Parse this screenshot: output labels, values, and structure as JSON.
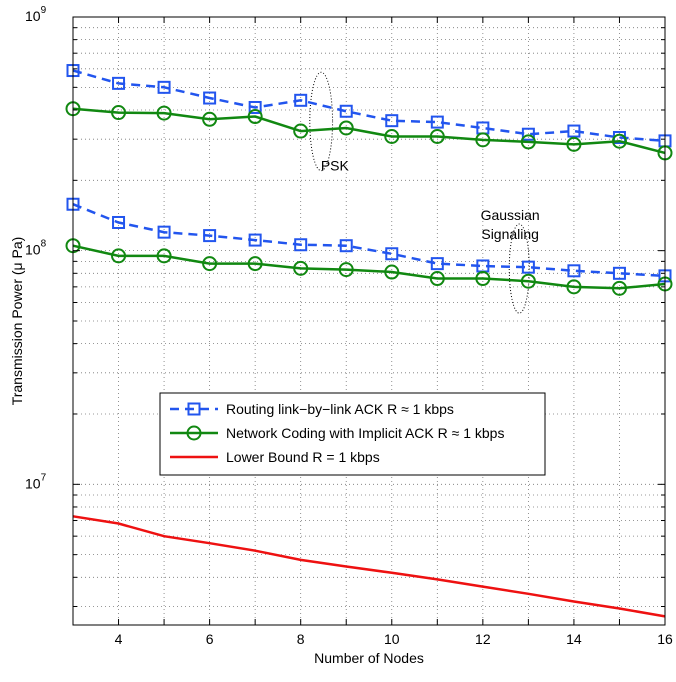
{
  "chart_data": {
    "type": "line",
    "xlabel": "Number of Nodes",
    "ylabel": "Transmission Power (μ Pa)",
    "xlim": [
      3,
      16
    ],
    "ylim": [
      2500000,
      1000000000
    ],
    "yscale": "log",
    "grid": true,
    "legend_position": "center-left",
    "x_ticks": [
      {
        "value": 4,
        "label": "4"
      },
      {
        "value": 6,
        "label": "6"
      },
      {
        "value": 8,
        "label": "8"
      },
      {
        "value": 10,
        "label": "10"
      },
      {
        "value": 12,
        "label": "12"
      },
      {
        "value": 14,
        "label": "14"
      },
      {
        "value": 16,
        "label": "16"
      }
    ],
    "y_ticks": [
      {
        "value": 10000000,
        "base": "10",
        "exp": "7"
      },
      {
        "value": 100000000,
        "base": "10",
        "exp": "8"
      },
      {
        "value": 1000000000,
        "base": "10",
        "exp": "9"
      }
    ],
    "legend_entries": [
      "Routing link−by−link ACK R ≈ 1 kbps",
      "Network Coding with Implicit ACK R ≈ 1 kbps",
      "Lower Bound R = 1 kbps"
    ],
    "annotations": [
      {
        "lines": [
          "PSK"
        ],
        "x": 8.75,
        "y": 220000000
      },
      {
        "lines": [
          "Gaussian",
          "Signaling"
        ],
        "x": 12.6,
        "y": 135000000
      }
    ],
    "ellipses": [
      {
        "cx": 8.45,
        "cy": 380000000,
        "x_radius": 0.25,
        "y_top": 580000000,
        "y_bottom": 220000000
      },
      {
        "cx": 12.8,
        "cy": 87000000,
        "x_radius": 0.22,
        "y_top": 130000000,
        "y_bottom": 54000000
      }
    ],
    "x": [
      3,
      4,
      5,
      6,
      7,
      8,
      9,
      10,
      11,
      12,
      13,
      14,
      15,
      16
    ],
    "series": [
      {
        "name": "Routing link−by−link ACK R ≈ 1 kbps",
        "group": "PSK",
        "color": "#2255ee",
        "style": "dashed",
        "marker": "square",
        "values": [
          590000000,
          520000000,
          500000000,
          450000000,
          410000000,
          440000000,
          395000000,
          360000000,
          355000000,
          335000000,
          315000000,
          325000000,
          305000000,
          295000000
        ]
      },
      {
        "name": "Network Coding with Implicit ACK R ≈ 1 kbps",
        "group": "PSK",
        "color": "#118811",
        "style": "solid",
        "marker": "circle",
        "values": [
          405000000,
          390000000,
          388000000,
          365000000,
          375000000,
          325000000,
          335000000,
          308000000,
          308000000,
          298000000,
          292000000,
          285000000,
          294000000,
          262000000
        ]
      },
      {
        "name": "Routing link−by−link ACK R ≈ 1 kbps",
        "group": "Gaussian Signaling",
        "color": "#2255ee",
        "style": "dashed",
        "marker": "square",
        "values": [
          158000000,
          132000000,
          120000000,
          116000000,
          111000000,
          106000000,
          105000000,
          97000000,
          88000000,
          86000000,
          85000000,
          82000000,
          80000000,
          78000000
        ]
      },
      {
        "name": "Network Coding with Implicit ACK R ≈ 1 kbps",
        "group": "Gaussian Signaling",
        "color": "#118811",
        "style": "solid",
        "marker": "circle",
        "values": [
          105000000,
          95000000,
          95000000,
          88000000,
          88000000,
          84000000,
          83000000,
          81000000,
          76000000,
          76000000,
          74000000,
          70000000,
          69000000,
          72000000
        ]
      },
      {
        "name": "Lower Bound R = 1 kbps",
        "group": "Bound",
        "color": "#ee1111",
        "style": "solid",
        "marker": "none",
        "values": [
          7300000,
          6800000,
          6000000,
          5600000,
          5200000,
          4750000,
          4450000,
          4180000,
          3920000,
          3650000,
          3400000,
          3150000,
          2940000,
          2720000
        ]
      }
    ]
  }
}
